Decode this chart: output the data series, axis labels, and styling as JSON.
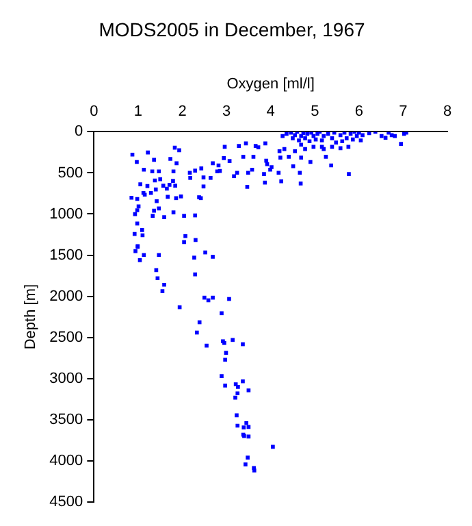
{
  "chart_data": {
    "type": "scatter",
    "title": "MODS2005 in December, 1967",
    "xlabel": "Oxygen [ml/l]",
    "ylabel": "Depth [m]",
    "xlim": [
      0,
      8
    ],
    "xticks": [
      0,
      1,
      2,
      3,
      4,
      5,
      6,
      7,
      8
    ],
    "ylim": [
      4500,
      0
    ],
    "yticks": [
      0,
      500,
      1000,
      1500,
      2000,
      2500,
      3000,
      3500,
      4000,
      4500
    ],
    "grid": false,
    "legend": false,
    "marker": "square",
    "series": [
      {
        "color": "#0000ff",
        "x": [
          0.94,
          1.04,
          1.13,
          1.47,
          0.99,
          1.41,
          1.44,
          1.59,
          1.55,
          1.94,
          2.04,
          2.07,
          2.3,
          2.27,
          2.52,
          2.69,
          2.29,
          2.5,
          2.59,
          2.69,
          3.06,
          2.89,
          2.39,
          2.33,
          2.55,
          2.92,
          2.95,
          3.14,
          3.37,
          2.99,
          2.97,
          2.89,
          2.97,
          3.37,
          3.21,
          3.26,
          3.25,
          3.5,
          3.2,
          3.23,
          3.25,
          3.45,
          3.39,
          3.5,
          3.38,
          3.4,
          3.5,
          3.48,
          3.43,
          3.62,
          3.63,
          4.05,
          0.87,
          0.97,
          1.22,
          1.36,
          1.13,
          1.32,
          1.47,
          1.05,
          1.21,
          1.38,
          1.5,
          1.57,
          1.71,
          1.79,
          1.8,
          1.83,
          1.93,
          1.73,
          1.87,
          1.12,
          1.29,
          1.4,
          1.65,
          1.84,
          0.85,
          0.98,
          1.15,
          1.42,
          1.67,
          1.86,
          1.97,
          1.01,
          0.98,
          0.93,
          1.36,
          1.47,
          1.59,
          1.33,
          1.8,
          0.98,
          1.09,
          0.92,
          1.1,
          0.99,
          2.04,
          2.29,
          2.17,
          2.29,
          2.18,
          2.43,
          2.48,
          2.48,
          2.38,
          2.42,
          2.64,
          2.69,
          2.82,
          2.79,
          2.85,
          2.94,
          2.96,
          3.07,
          3.17,
          3.24,
          3.28,
          3.38,
          3.44,
          3.49,
          3.47,
          3.61,
          3.58,
          3.66,
          3.72,
          3.88,
          3.9,
          3.92,
          3.85,
          3.99,
          4.02,
          3.87,
          4.2,
          4.22,
          4.18,
          4.24,
          4.31,
          4.41,
          4.51,
          4.66,
          4.68,
          4.55,
          4.69,
          4.69,
          4.9,
          4.27,
          4.36,
          4.46,
          4.5,
          4.55,
          4.6,
          4.64,
          4.69,
          4.74,
          4.78,
          4.83,
          4.88,
          4.92,
          4.97,
          5.02,
          5.06,
          5.11,
          5.16,
          5.2,
          5.3,
          5.39,
          5.44,
          5.48,
          5.58,
          5.62,
          5.67,
          5.72,
          5.76,
          5.81,
          5.86,
          5.9,
          5.95,
          6.0,
          6.04,
          6.08,
          5.2,
          5.25,
          5.37,
          5.77,
          5.16,
          6.37,
          6.51,
          6.6,
          6.67,
          6.74,
          6.81,
          6.95,
          7.02,
          7.07,
          6.23,
          5.58,
          5.39,
          4.97,
          4.78
        ],
        "values": [
          1451,
          1561,
          1498,
          1498,
          1399,
          1682,
          1781,
          1860,
          1938,
          2133,
          1341,
          1268,
          1316,
          1530,
          1467,
          1520,
          1734,
          2017,
          2049,
          2017,
          2033,
          2206,
          2316,
          2441,
          2600,
          2547,
          2568,
          2531,
          2583,
          2688,
          2772,
          2971,
          3086,
          3034,
          3071,
          3102,
          3180,
          3144,
          3233,
          3447,
          3573,
          3542,
          3595,
          3589,
          3683,
          3699,
          3705,
          3961,
          4045,
          4087,
          4118,
          3830,
          278,
          367,
          252,
          341,
          461,
          482,
          482,
          639,
          660,
          592,
          576,
          655,
          645,
          597,
          482,
          194,
          225,
          330,
          383,
          744,
          744,
          702,
          692,
          655,
          802,
          817,
          765,
          844,
          791,
          807,
          786,
          907,
          954,
          1001,
          959,
          933,
          1038,
          1022,
          980,
          1116,
          1195,
          1242,
          1258,
          1389,
          1022,
          1017,
          498,
          472,
          561,
          445,
          555,
          665,
          796,
          807,
          561,
          383,
          409,
          482,
          477,
          320,
          183,
          356,
          540,
          498,
          173,
          304,
          141,
          498,
          670,
          304,
          461,
          173,
          189,
          141,
          351,
          393,
          514,
          461,
          430,
          618,
          236,
          314,
          498,
          602,
          210,
          304,
          419,
          498,
          629,
          236,
          314,
          157,
          367,
          52,
          26,
          10,
          79,
          42,
          0,
          105,
          52,
          16,
          79,
          26,
          115,
          10,
          52,
          94,
          26,
          0,
          105,
          52,
          26,
          79,
          10,
          131,
          42,
          115,
          10,
          79,
          183,
          26,
          94,
          0,
          52,
          10,
          105,
          42,
          210,
          304,
          409,
          514,
          183,
          0,
          52,
          73,
          10,
          42,
          52,
          147,
          26,
          10,
          16,
          199,
          183,
          183,
          210
        ]
      }
    ]
  }
}
